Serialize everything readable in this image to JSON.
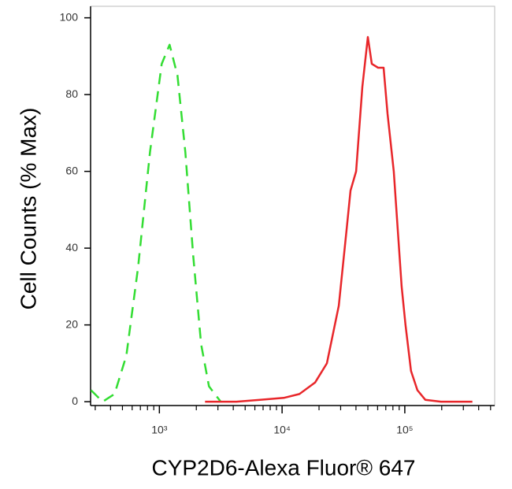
{
  "chart_data": {
    "type": "line",
    "xlabel": "CYP2D6-Alexa Fluor® 647",
    "ylabel": "Cell Counts (% Max)",
    "xscale": "log",
    "xlim": [
      275,
      540000
    ],
    "ylim": [
      -1,
      103
    ],
    "xticks": [
      {
        "value": 1000,
        "label": "10³"
      },
      {
        "value": 10000,
        "label": "10⁴"
      },
      {
        "value": 100000,
        "label": "10⁵"
      }
    ],
    "xminorticks": [
      300,
      400,
      500,
      600,
      700,
      800,
      900,
      2000,
      3000,
      4000,
      5000,
      6000,
      7000,
      8000,
      9000,
      20000,
      30000,
      40000,
      50000,
      60000,
      70000,
      80000,
      90000,
      200000,
      300000,
      400000,
      500000
    ],
    "yticks": [
      0,
      20,
      40,
      60,
      80,
      100
    ],
    "series": [
      {
        "color": "#33dd33",
        "dash": true,
        "x": [
          277,
          345,
          431,
          538,
          671,
          838,
          1045,
          1211,
          1403,
          1628,
          1887,
          2188,
          2536,
          3162
        ],
        "values": [
          3,
          0,
          2,
          12,
          35,
          65,
          88,
          93,
          85,
          65,
          38,
          15,
          4,
          0
        ]
      },
      {
        "color": "#e8262a",
        "dash": false,
        "x": [
          2355,
          4249,
          6622,
          10310,
          13830,
          18580,
          23190,
          28970,
          33580,
          36140,
          40090,
          45110,
          50000,
          53830,
          60560,
          67140,
          72290,
          81280,
          87580,
          94250,
          101400,
          112400,
          126700,
          146800,
          197200,
          355600
        ],
        "values": [
          0,
          0,
          0.5,
          1,
          2,
          5,
          10,
          25,
          45,
          55,
          60,
          82,
          95,
          88,
          87,
          87,
          75,
          60,
          45,
          30,
          20,
          8,
          3,
          0.5,
          0,
          0
        ]
      }
    ]
  }
}
